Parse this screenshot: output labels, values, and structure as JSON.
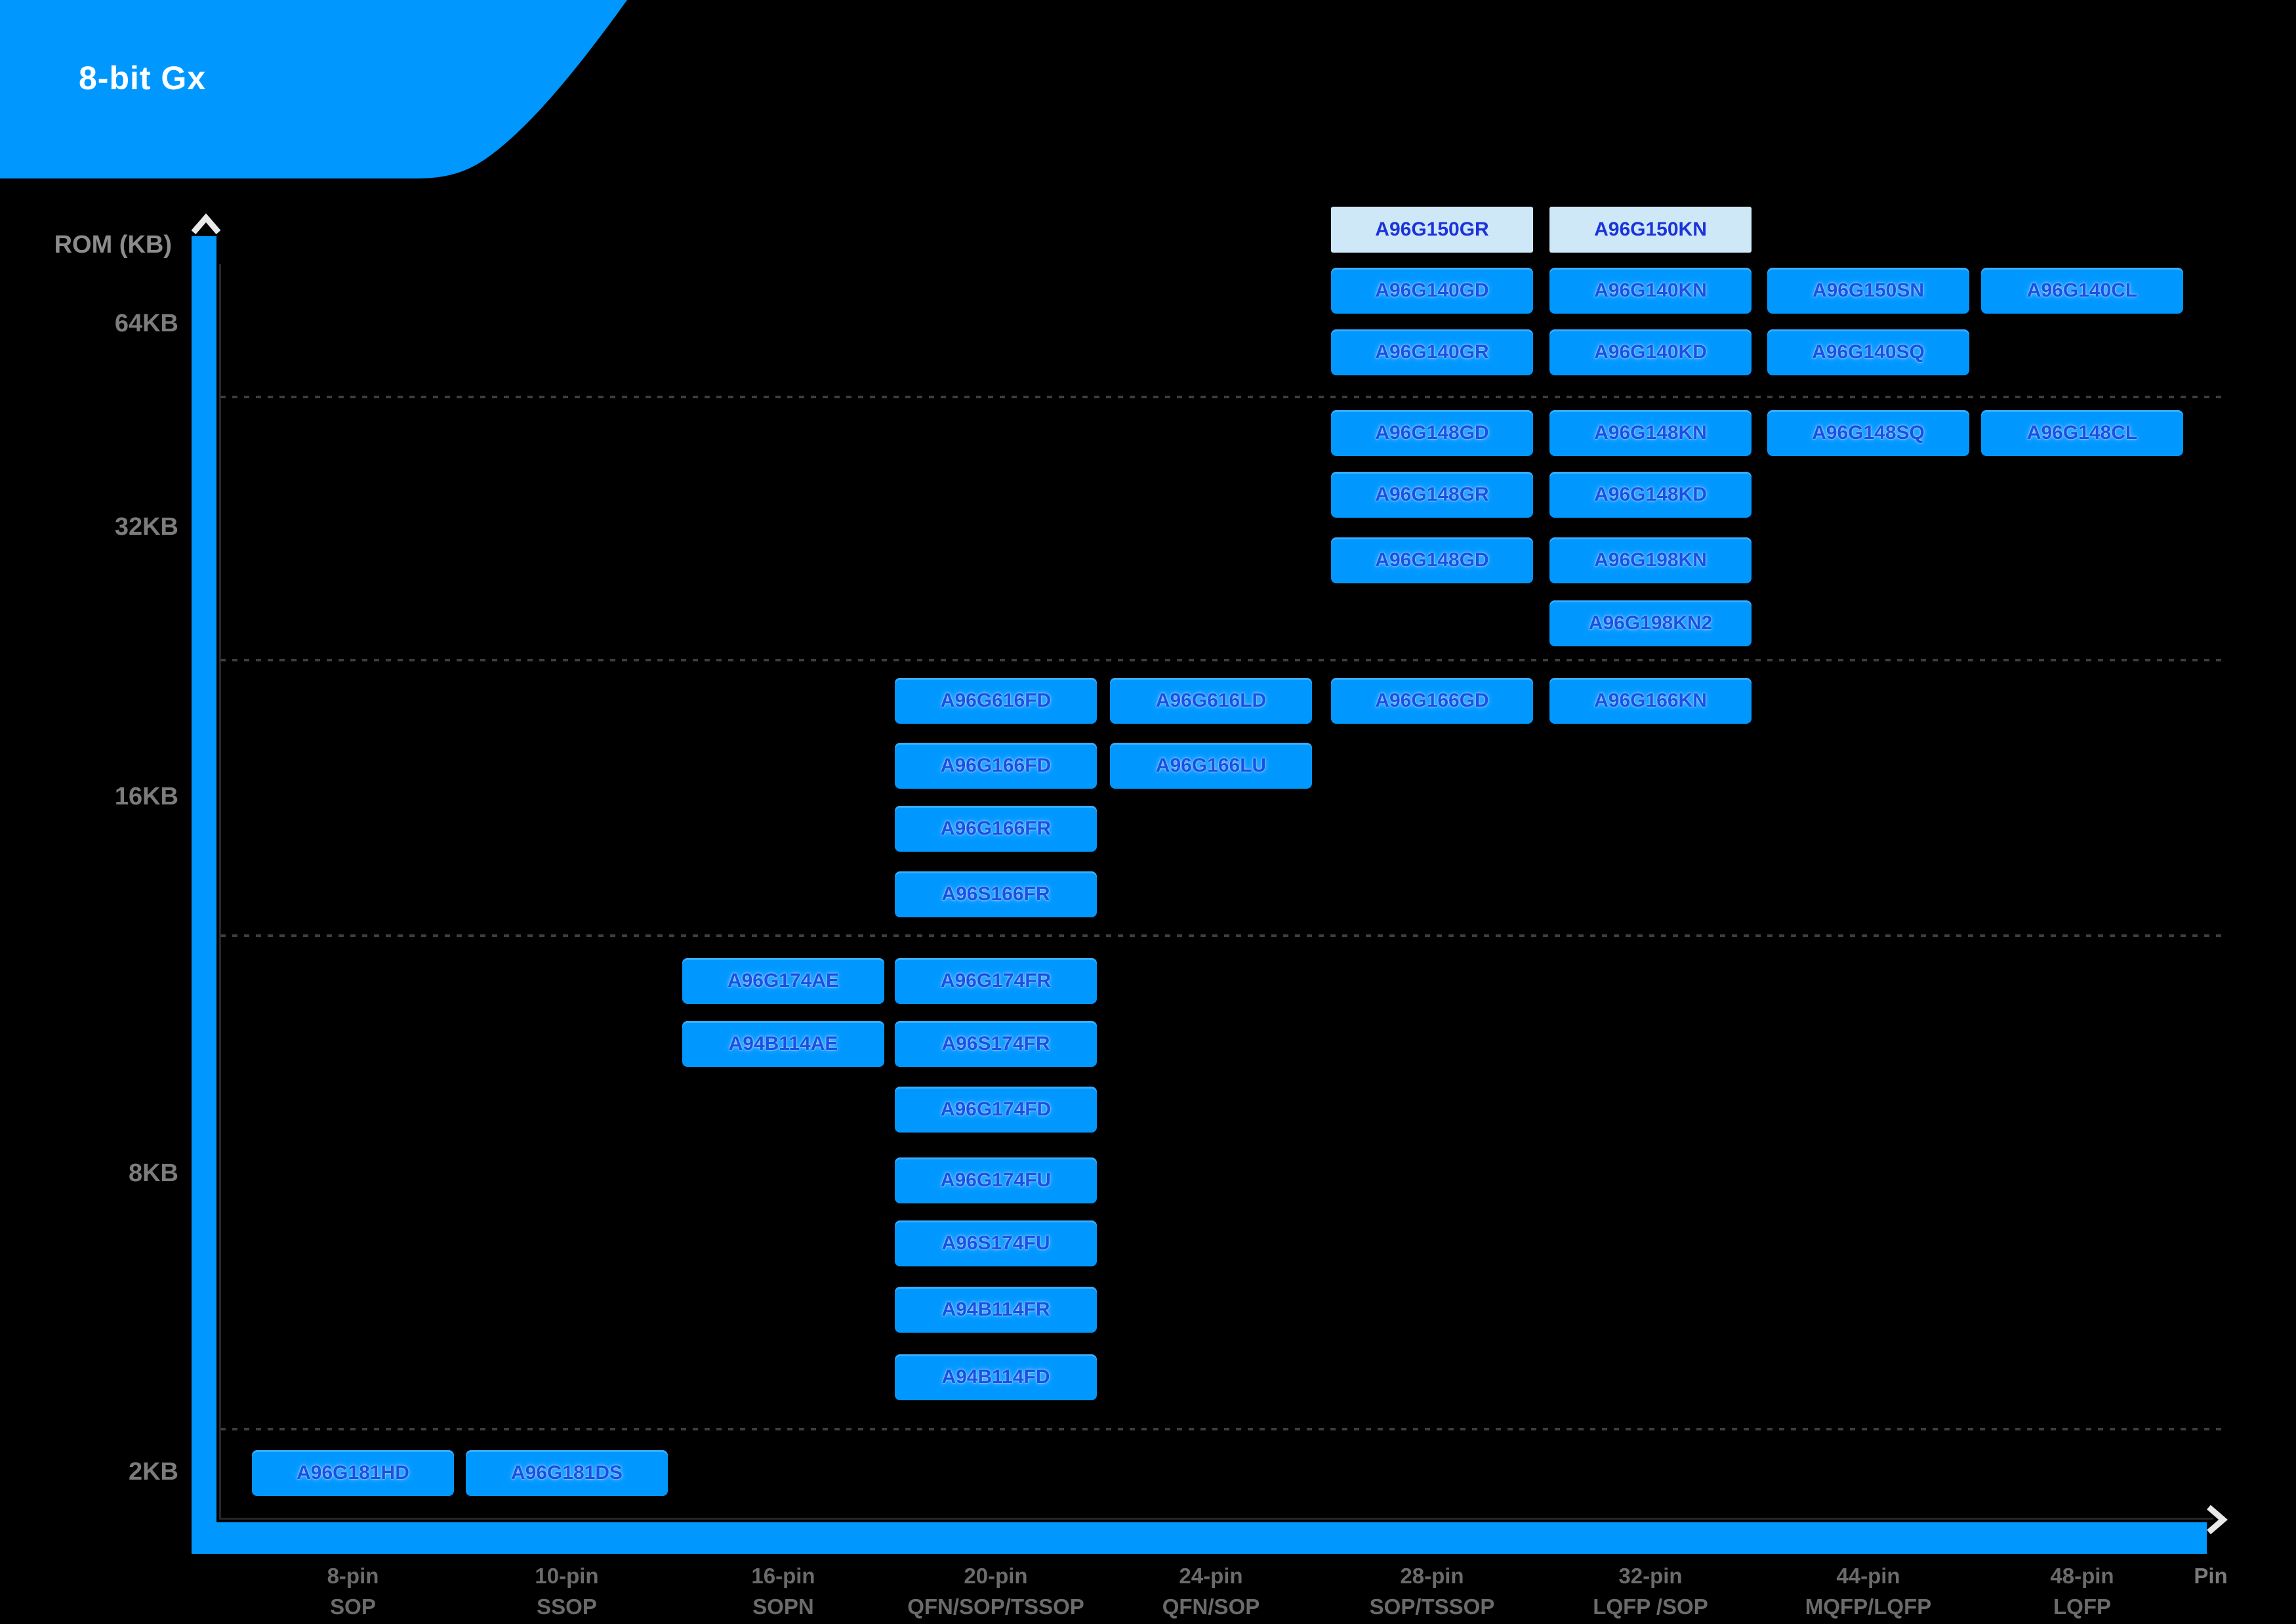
{
  "banner": {
    "title": "8-bit Gx"
  },
  "y_axis": {
    "label": "ROM (KB)",
    "ticks": [
      "64KB",
      "32KB",
      "16KB",
      "8KB",
      "2KB"
    ]
  },
  "x_axis": {
    "end_label": "Pin",
    "columns": [
      {
        "pins": "8-pin",
        "package": "SOP"
      },
      {
        "pins": "10-pin",
        "package": "SSOP"
      },
      {
        "pins": "16-pin",
        "package": "SOPN"
      },
      {
        "pins": "20-pin",
        "package": "QFN/SOP/TSSOP"
      },
      {
        "pins": "24-pin",
        "package": "QFN/SOP"
      },
      {
        "pins": "28-pin",
        "package": "SOP/TSSOP"
      },
      {
        "pins": "32-pin",
        "package": "LQFP /SOP"
      },
      {
        "pins": "44-pin",
        "package": "MQFP/LQFP"
      },
      {
        "pins": "48-pin",
        "package": "LQFP"
      }
    ]
  },
  "colors": {
    "background": "#000000",
    "accent_blue": "#0098FF",
    "chip_text_blue": "#1B4FE6",
    "highlight_chip_bg": "#CFE8F8",
    "highlight_chip_text": "#1C33D8",
    "gridline_gray": "#3E3E3E",
    "column_label_gray": "#6B6B6B",
    "tick_label_gray": "#7C7C7C",
    "banner_text": "#FFFFFF"
  },
  "chart_data": {
    "type": "matrix",
    "title": "8-bit Gx",
    "xlabel": "Pin",
    "ylabel": "ROM (KB)",
    "x_categories": [
      "8-pin SOP",
      "10-pin SSOP",
      "16-pin SOPN",
      "20-pin QFN/SOP/TSSOP",
      "24-pin QFN/SOP",
      "28-pin SOP/TSSOP",
      "32-pin LQFP /SOP",
      "44-pin MQFP/LQFP",
      "48-pin LQFP"
    ],
    "y_categories": [
      "2KB",
      "8KB",
      "16KB",
      "32KB",
      "64KB"
    ],
    "tiers": [
      {
        "rom": "64KB",
        "rows": [
          [
            {
              "name": "A96G150GR",
              "col": "28-pin",
              "highlight": true
            },
            {
              "name": "A96G150KN",
              "col": "32-pin",
              "highlight": true
            }
          ],
          [
            {
              "name": "A96G140GD",
              "col": "28-pin"
            },
            {
              "name": "A96G140KN",
              "col": "32-pin"
            },
            {
              "name": "A96G150SN",
              "col": "44-pin"
            },
            {
              "name": "A96G140CL",
              "col": "48-pin"
            }
          ],
          [
            {
              "name": "A96G140GR",
              "col": "28-pin"
            },
            {
              "name": "A96G140KD",
              "col": "32-pin"
            },
            {
              "name": "A96G140SQ",
              "col": "44-pin"
            }
          ]
        ]
      },
      {
        "rom": "32KB",
        "rows": [
          [
            {
              "name": "A96G148GD",
              "col": "28-pin"
            },
            {
              "name": "A96G148KN",
              "col": "32-pin"
            },
            {
              "name": "A96G148SQ",
              "col": "44-pin"
            },
            {
              "name": "A96G148CL",
              "col": "48-pin"
            }
          ],
          [
            {
              "name": "A96G148GR",
              "col": "28-pin"
            },
            {
              "name": "A96G148KD",
              "col": "32-pin"
            }
          ],
          [
            {
              "name": "A96G148GD",
              "col": "28-pin"
            },
            {
              "name": "A96G198KN",
              "col": "32-pin"
            }
          ],
          [
            {
              "name": "A96G198KN2",
              "col": "32-pin"
            }
          ]
        ]
      },
      {
        "rom": "16KB",
        "rows": [
          [
            {
              "name": "A96G616FD",
              "col": "20-pin"
            },
            {
              "name": "A96G616LD",
              "col": "24-pin"
            },
            {
              "name": "A96G166GD",
              "col": "28-pin"
            },
            {
              "name": "A96G166KN",
              "col": "32-pin"
            }
          ],
          [
            {
              "name": "A96G166FD",
              "col": "20-pin"
            },
            {
              "name": "A96G166LU",
              "col": "24-pin"
            }
          ],
          [
            {
              "name": "A96G166FR",
              "col": "20-pin"
            }
          ],
          [
            {
              "name": "A96S166FR",
              "col": "20-pin"
            }
          ]
        ]
      },
      {
        "rom": "8KB",
        "rows": [
          [
            {
              "name": "A96G174AE",
              "col": "16-pin"
            },
            {
              "name": "A96G174FR",
              "col": "20-pin"
            }
          ],
          [
            {
              "name": "A94B114AE",
              "col": "16-pin"
            },
            {
              "name": "A96S174FR",
              "col": "20-pin"
            }
          ],
          [
            {
              "name": "A96G174FD",
              "col": "20-pin"
            }
          ],
          [
            {
              "name": "A96G174FU",
              "col": "20-pin"
            }
          ],
          [
            {
              "name": "A96S174FU",
              "col": "20-pin"
            }
          ],
          [
            {
              "name": "A94B114FR",
              "col": "20-pin"
            }
          ],
          [
            {
              "name": "A94B114FD",
              "col": "20-pin"
            }
          ]
        ]
      },
      {
        "rom": "2KB",
        "rows": [
          [
            {
              "name": "A96G181HD",
              "col": "8-pin"
            },
            {
              "name": "A96G181DS",
              "col": "10-pin"
            }
          ]
        ]
      }
    ]
  }
}
